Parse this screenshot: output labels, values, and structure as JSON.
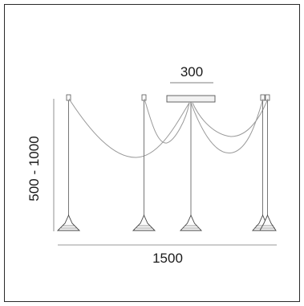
{
  "dimensions": {
    "top_width": "300",
    "height_range": "500 - 1000",
    "total_width": "1500"
  }
}
